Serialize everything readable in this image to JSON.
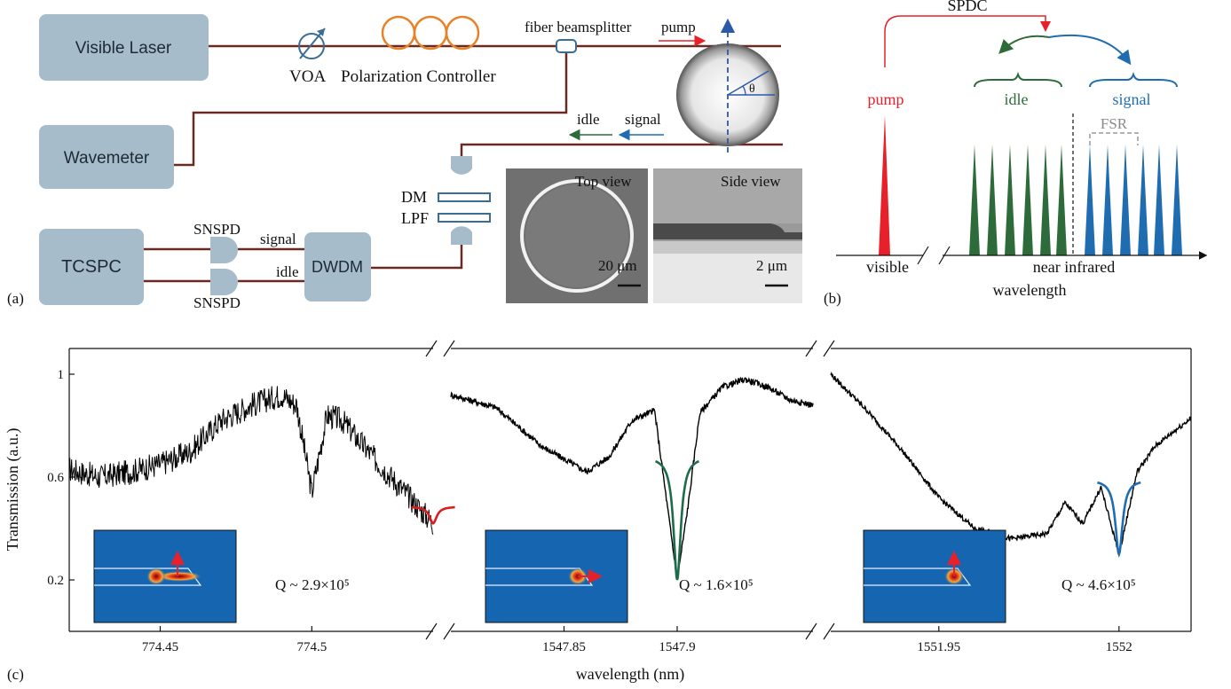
{
  "panel_a": {
    "boxes": {
      "visible_laser": "Visible Laser",
      "wavemeter": "Wavemeter",
      "tcspc": "TCSPC",
      "dwdm": "DWDM"
    },
    "labels": {
      "voa": "VOA",
      "polarization_controller": "Polarization Controller",
      "fiber_beamsplitter": "fiber beamsplitter",
      "pump": "pump",
      "theta": "θ",
      "idle": "idle",
      "signal": "signal",
      "dm": "DM",
      "lpf": "LPF",
      "snspd_top": "SNSPD",
      "snspd_bottom": "SNSPD",
      "signal_path": "signal",
      "idle_path": "idle",
      "top_view": "Top view",
      "side_view": "Side view",
      "scale_top": "20 μm",
      "scale_side": "2 μm"
    },
    "panel_label": "(a)"
  },
  "panel_b": {
    "spdc": "SPDC",
    "pump": "pump",
    "idle": "idle",
    "signal": "signal",
    "fsr": "FSR",
    "visible": "visible",
    "near_infrared": "near infrared",
    "wavelength": "wavelength",
    "panel_label": "(b)",
    "colors": {
      "pump": "#e8202a",
      "idle": "#2e6b3a",
      "signal": "#1f6db0"
    }
  },
  "panel_c": {
    "panel_label": "(c)",
    "ylabel": "Transmission (a.u.)",
    "xlabel": "wavelength (nm)",
    "yticks": [
      "1",
      "0.6",
      "0.2"
    ],
    "ytick_values": [
      1.0,
      0.6,
      0.2
    ],
    "segments": [
      {
        "xticks": [
          "774.45",
          "774.5"
        ],
        "q": "Q ~ 2.9×10⁵",
        "fit_color": "#d71f1f"
      },
      {
        "xticks": [
          "1547.85",
          "1547.9"
        ],
        "q": "Q ~ 1.6×10⁵",
        "fit_color": "#1d6b4a"
      },
      {
        "xticks": [
          "1551.95",
          "1552"
        ],
        "q": "Q ~ 4.6×10⁵",
        "fit_color": "#1f6db0"
      }
    ]
  },
  "chart_data": [
    {
      "type": "line",
      "xlabel": "wavelength (nm)",
      "ylabel": "Transmission (a.u.)",
      "xlim": [
        774.42,
        774.54
      ],
      "ylim": [
        0.0,
        1.1
      ],
      "x": [
        774.42,
        774.43,
        774.44,
        774.45,
        774.46,
        774.47,
        774.48,
        774.49,
        774.495,
        774.5,
        774.505,
        774.51,
        774.52,
        774.53,
        774.54
      ],
      "y": [
        0.63,
        0.6,
        0.62,
        0.65,
        0.7,
        0.82,
        0.88,
        0.92,
        0.88,
        0.54,
        0.84,
        0.82,
        0.68,
        0.55,
        0.42
      ],
      "annotation": "Q ~ 2.9×10⁵"
    },
    {
      "type": "line",
      "xlabel": "wavelength (nm)",
      "ylabel": "Transmission (a.u.)",
      "xlim": [
        1547.8,
        1547.96
      ],
      "ylim": [
        0.0,
        1.1
      ],
      "x": [
        1547.8,
        1547.82,
        1547.84,
        1547.86,
        1547.87,
        1547.88,
        1547.89,
        1547.9,
        1547.905,
        1547.91,
        1547.92,
        1547.93,
        1547.94,
        1547.95,
        1547.96
      ],
      "y": [
        0.92,
        0.87,
        0.72,
        0.62,
        0.68,
        0.82,
        0.86,
        0.2,
        0.5,
        0.85,
        0.95,
        0.98,
        0.95,
        0.9,
        0.88
      ],
      "annotation": "Q ~ 1.6×10⁵"
    },
    {
      "type": "line",
      "xlabel": "wavelength (nm)",
      "ylabel": "Transmission (a.u.)",
      "xlim": [
        1551.92,
        1552.02
      ],
      "ylim": [
        0.0,
        1.1
      ],
      "x": [
        1551.92,
        1551.93,
        1551.94,
        1551.95,
        1551.96,
        1551.97,
        1551.98,
        1551.985,
        1551.99,
        1551.995,
        1552.0,
        1552.005,
        1552.01,
        1552.02
      ],
      "y": [
        1.0,
        0.86,
        0.7,
        0.52,
        0.4,
        0.36,
        0.38,
        0.5,
        0.42,
        0.56,
        0.3,
        0.62,
        0.72,
        0.83
      ],
      "annotation": "Q ~ 4.6×10⁵"
    }
  ]
}
